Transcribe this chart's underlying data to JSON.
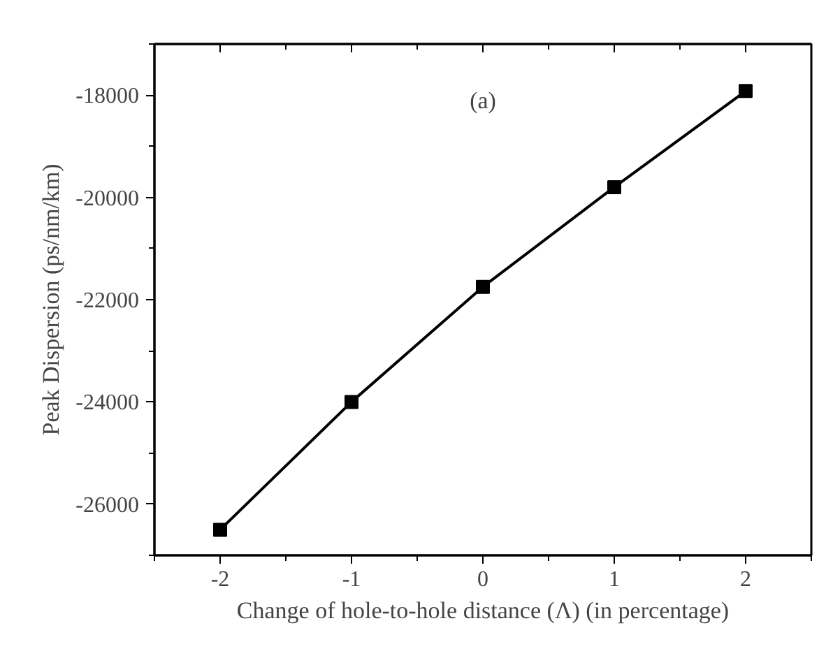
{
  "chart_data": {
    "type": "line",
    "xlabel": "Change of hole-to-hole distance (Λ) (in percentage)",
    "ylabel": "Peak Dispersion (ps/nm/km)",
    "annotations": [
      "(a)"
    ],
    "x": [
      -2,
      -1,
      0,
      1,
      2
    ],
    "series": [
      {
        "color": "#000000",
        "values": [
          -26500,
          -24000,
          -21750,
          -19800,
          -17920
        ]
      }
    ],
    "xlim": [
      -2.5,
      2.5
    ],
    "xticks": [
      -2,
      -1,
      0,
      1,
      2
    ],
    "ylim": [
      -27000,
      -17000
    ],
    "yticks": [
      -26000,
      -24000,
      -22000,
      -20000,
      -18000
    ],
    "marker": "square",
    "line_style": "solid",
    "grid": false
  }
}
